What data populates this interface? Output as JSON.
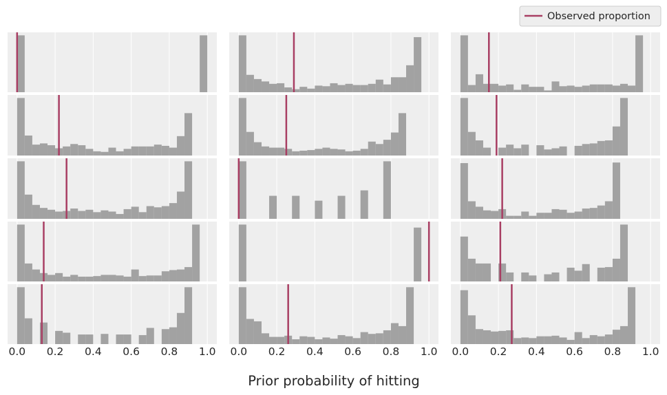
{
  "chart_data": {
    "type": "bar",
    "subtype": "histogram-grid",
    "rows": 5,
    "cols": 3,
    "xlabel": "Prior probability of hitting",
    "xlim": [
      -0.05,
      1.05
    ],
    "xticks": [
      0.0,
      0.2,
      0.4,
      0.6,
      0.8,
      1.0
    ],
    "xtick_labels": [
      "0.0",
      "0.2",
      "0.4",
      "0.6",
      "0.8",
      "1.0"
    ],
    "bins": 25,
    "bar_color": "#a2a2a2",
    "vline_color": "#a83e63",
    "panel_bg": "#eeeeee",
    "grid": "vertical",
    "legend": {
      "placement": "top-right",
      "entries": [
        {
          "label": "Observed proportion",
          "color": "#a83e63"
        }
      ]
    },
    "panels": [
      {
        "observed": 0.0,
        "counts": [
          0.95,
          0,
          0,
          0,
          0,
          0,
          0,
          0,
          0,
          0,
          0,
          0,
          0,
          0,
          0,
          0,
          0,
          0,
          0,
          0,
          0,
          0,
          0,
          0,
          0.95
        ]
      },
      {
        "observed": 0.29,
        "counts": [
          0.95,
          0.29,
          0.22,
          0.18,
          0.14,
          0.15,
          0.08,
          0.05,
          0.09,
          0.06,
          0.11,
          0.1,
          0.15,
          0.12,
          0.14,
          0.12,
          0.12,
          0.14,
          0.21,
          0.13,
          0.25,
          0.25,
          0.45,
          0.92,
          0
        ]
      },
      {
        "observed": 0.15,
        "counts": [
          0.95,
          0.12,
          0.3,
          0.14,
          0.14,
          0.11,
          0.13,
          0.04,
          0.13,
          0.09,
          0.09,
          0.03,
          0.18,
          0.1,
          0.11,
          0.09,
          0.11,
          0.13,
          0.13,
          0.13,
          0.11,
          0.14,
          0.11,
          0.95,
          0
        ]
      },
      {
        "observed": 0.22,
        "counts": [
          0.95,
          0.33,
          0.18,
          0.2,
          0.17,
          0.12,
          0.15,
          0.19,
          0.17,
          0.11,
          0.07,
          0.06,
          0.13,
          0.07,
          0.11,
          0.15,
          0.15,
          0.15,
          0.18,
          0.16,
          0.13,
          0.32,
          0.7,
          0,
          0
        ]
      },
      {
        "observed": 0.25,
        "counts": [
          0.95,
          0.39,
          0.22,
          0.15,
          0.13,
          0.13,
          0.11,
          0.07,
          0.08,
          0.09,
          0.11,
          0.13,
          0.11,
          0.1,
          0.07,
          0.08,
          0.11,
          0.23,
          0.19,
          0.26,
          0.38,
          0.7,
          0,
          0,
          0
        ]
      },
      {
        "observed": 0.19,
        "counts": [
          0.95,
          0.39,
          0.25,
          0.13,
          0,
          0.13,
          0.18,
          0.12,
          0.18,
          0,
          0.17,
          0.1,
          0.12,
          0.15,
          0,
          0.16,
          0.19,
          0.2,
          0.24,
          0.25,
          0.48,
          0.95,
          0,
          0,
          0
        ]
      },
      {
        "observed": 0.26,
        "counts": [
          0.95,
          0.4,
          0.23,
          0.18,
          0.15,
          0.12,
          0.13,
          0.17,
          0.13,
          0.15,
          0.11,
          0.14,
          0.12,
          0.08,
          0.16,
          0.2,
          0.11,
          0.21,
          0.19,
          0.21,
          0.26,
          0.45,
          0.95,
          0,
          0
        ]
      },
      {
        "observed": 0.0,
        "counts": [
          0.95,
          0,
          0,
          0,
          0.38,
          0,
          0,
          0.38,
          0,
          0,
          0.3,
          0,
          0,
          0.38,
          0,
          0,
          0.47,
          0,
          0,
          0.95,
          0,
          0,
          0,
          0,
          0
        ]
      },
      {
        "observed": 0.22,
        "counts": [
          0.92,
          0.29,
          0.2,
          0.14,
          0.13,
          0.16,
          0.05,
          0.05,
          0.12,
          0.05,
          0.1,
          0.1,
          0.16,
          0.15,
          0.1,
          0.12,
          0.17,
          0.18,
          0.22,
          0.29,
          0.93,
          0,
          0,
          0,
          0
        ]
      },
      {
        "observed": 0.14,
        "counts": [
          0.95,
          0.3,
          0.2,
          0.14,
          0.11,
          0.14,
          0.08,
          0.11,
          0.08,
          0.08,
          0.09,
          0.11,
          0.11,
          0.1,
          0.08,
          0.2,
          0.09,
          0.1,
          0.1,
          0.17,
          0.19,
          0.2,
          0.24,
          0.95,
          0
        ]
      },
      {
        "observed": 1.0,
        "counts": [
          0.95,
          0,
          0,
          0,
          0,
          0,
          0,
          0,
          0,
          0,
          0,
          0,
          0,
          0,
          0,
          0,
          0,
          0,
          0,
          0,
          0,
          0,
          0,
          0.9,
          0
        ]
      },
      {
        "observed": 0.21,
        "counts": [
          0.75,
          0.38,
          0.3,
          0.3,
          0,
          0.3,
          0.15,
          0,
          0.15,
          0.1,
          0,
          0.12,
          0.15,
          0,
          0.23,
          0.18,
          0.29,
          0,
          0.23,
          0.24,
          0.38,
          0.95,
          0,
          0,
          0
        ]
      },
      {
        "observed": 0.13,
        "counts": [
          0.95,
          0.43,
          0,
          0.36,
          0,
          0.22,
          0.19,
          0,
          0.16,
          0.16,
          0,
          0.17,
          0,
          0.16,
          0.16,
          0,
          0.15,
          0.27,
          0,
          0.25,
          0.28,
          0.52,
          0.95,
          0,
          0
        ]
      },
      {
        "observed": 0.26,
        "counts": [
          0.95,
          0.42,
          0.38,
          0.18,
          0.12,
          0.12,
          0.14,
          0.08,
          0.13,
          0.12,
          0.08,
          0.11,
          0.09,
          0.15,
          0.13,
          0.1,
          0.2,
          0.17,
          0.18,
          0.23,
          0.35,
          0.3,
          0.95,
          0,
          0
        ]
      },
      {
        "observed": 0.27,
        "counts": [
          0.9,
          0.48,
          0.25,
          0.23,
          0.21,
          0.22,
          0.23,
          0.1,
          0.11,
          0.1,
          0.13,
          0.13,
          0.14,
          0.11,
          0.07,
          0.2,
          0.1,
          0.15,
          0.13,
          0.16,
          0.24,
          0.3,
          0.95,
          0,
          0
        ]
      }
    ]
  }
}
